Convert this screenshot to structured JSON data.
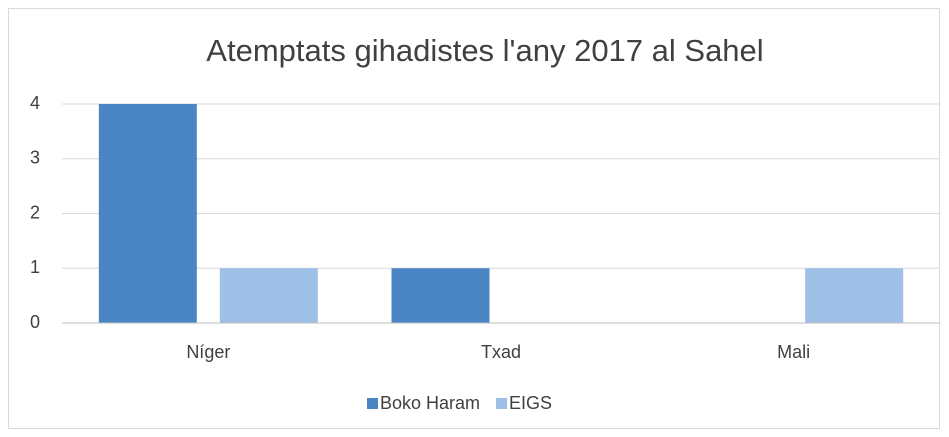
{
  "chart_data": {
    "type": "bar",
    "title": "Atemptats gihadistes l'any 2017 al Sahel",
    "categories": [
      "Níger",
      "Txad",
      "Mali"
    ],
    "series": [
      {
        "name": "Boko Haram",
        "color": "#4a86c5",
        "values": [
          4,
          1,
          0
        ]
      },
      {
        "name": "EIGS",
        "color": "#9fc0e6",
        "values": [
          1,
          0,
          1
        ]
      }
    ],
    "ylim": [
      0,
      4
    ],
    "yticks": [
      0,
      1,
      2,
      3,
      4
    ],
    "grid": true,
    "legend": "bottom"
  }
}
